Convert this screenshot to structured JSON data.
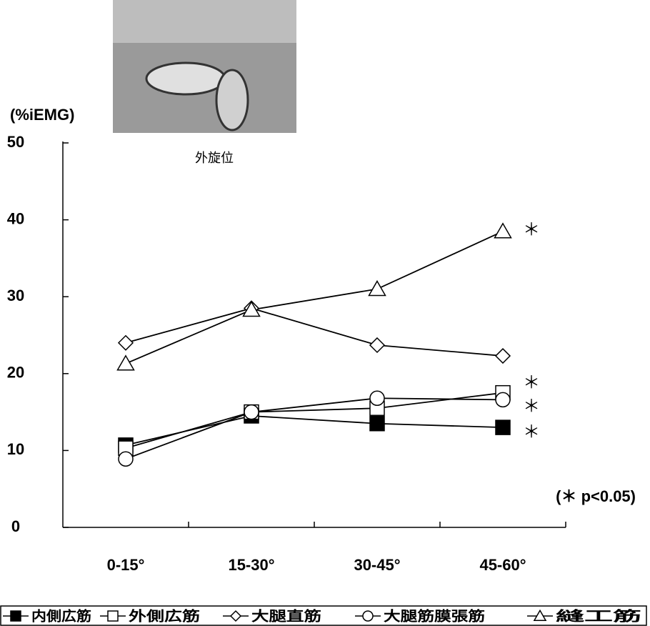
{
  "chart_data": {
    "type": "line",
    "y_label": "(%iEMG)",
    "image_caption": "外旋位",
    "categories": [
      "0-15°",
      "15-30°",
      "30-45°",
      "45-60°"
    ],
    "series": [
      {
        "name": "内側広筋",
        "color": "#000000",
        "marker": "square-filled",
        "values": [
          10.7,
          14.5,
          13.5,
          13.0
        ]
      },
      {
        "name": "外側広筋",
        "color": "#000000",
        "marker": "square-open",
        "values": [
          10.3,
          15.0,
          15.5,
          17.5
        ]
      },
      {
        "name": "大腿直筋",
        "color": "#000000",
        "marker": "diamond-open",
        "values": [
          24.0,
          28.5,
          23.7,
          22.3
        ]
      },
      {
        "name": "大腿筋膜張筋",
        "color": "#000000",
        "marker": "circle-open",
        "values": [
          8.9,
          15.0,
          16.8,
          16.6
        ]
      },
      {
        "name": "縫工筋",
        "color": "#000000",
        "marker": "triangle-open",
        "values": [
          21.3,
          28.3,
          31.0,
          38.5
        ]
      }
    ],
    "annotations": [
      "＊",
      "＊",
      "＊",
      "＊"
    ],
    "note": "(＊ p<0.05)",
    "ylim": [
      0,
      50
    ],
    "yticks": [
      0,
      10,
      20,
      30,
      40,
      50
    ],
    "grid": false
  }
}
